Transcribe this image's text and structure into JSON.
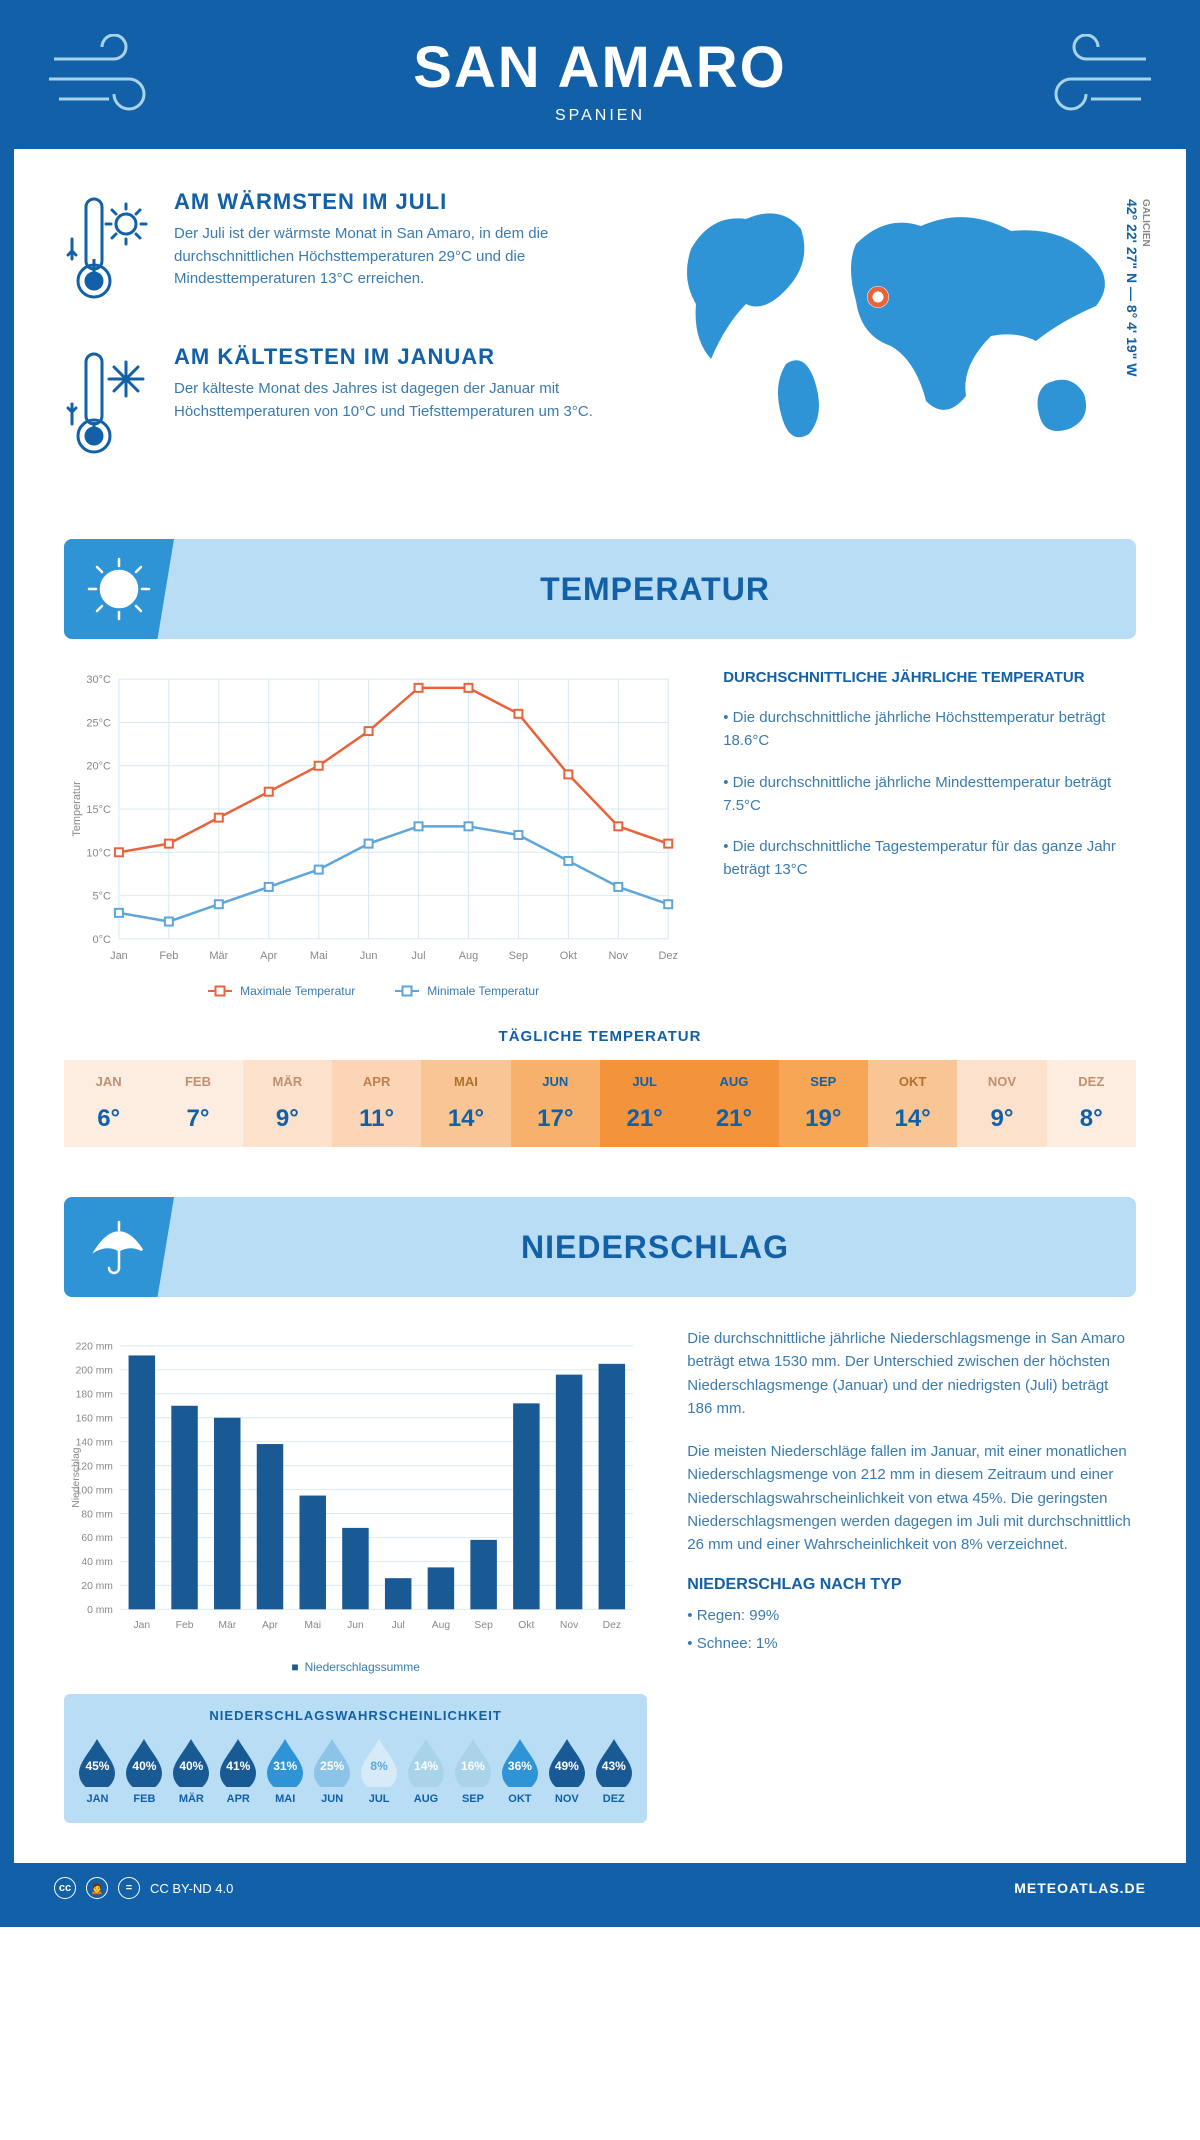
{
  "header": {
    "title": "SAN AMARO",
    "subtitle": "SPANIEN"
  },
  "coords": {
    "region": "GALICIEN",
    "text": "42° 22' 27\" N — 8° 4' 19\" W"
  },
  "facts": {
    "warmest": {
      "title": "AM WÄRMSTEN IM JULI",
      "text": "Der Juli ist der wärmste Monat in San Amaro, in dem die durchschnittlichen Höchsttemperaturen 29°C und die Mindesttemperaturen 13°C erreichen."
    },
    "coldest": {
      "title": "AM KÄLTESTEN IM JANUAR",
      "text": "Der kälteste Monat des Jahres ist dagegen der Januar mit Höchsttemperaturen von 10°C und Tiefsttemperaturen um 3°C."
    }
  },
  "temperature": {
    "section_title": "TEMPERATUR",
    "months": [
      "Jan",
      "Feb",
      "Mär",
      "Apr",
      "Mai",
      "Jun",
      "Jul",
      "Aug",
      "Sep",
      "Okt",
      "Nov",
      "Dez"
    ],
    "max_values": [
      10,
      11,
      14,
      17,
      20,
      24,
      29,
      29,
      26,
      19,
      13,
      11
    ],
    "min_values": [
      3,
      2,
      4,
      6,
      8,
      11,
      13,
      13,
      12,
      9,
      6,
      4
    ],
    "max_color": "#e9623a",
    "min_color": "#5da5db",
    "ylim": [
      0,
      30
    ],
    "ytick_step": 5,
    "y_unit": "°C",
    "ylabel": "Temperatur",
    "legend_max": "Maximale Temperatur",
    "legend_min": "Minimale Temperatur",
    "text_title": "DURCHSCHNITTLICHE JÄHRLICHE TEMPERATUR",
    "bullet1": "• Die durchschnittliche jährliche Höchsttemperatur beträgt 18.6°C",
    "bullet2": "• Die durchschnittliche jährliche Mindesttemperatur beträgt 7.5°C",
    "bullet3": "• Die durchschnittliche Tagestemperatur für das ganze Jahr beträgt 13°C",
    "daily_title": "TÄGLICHE TEMPERATUR",
    "daily_months": [
      "JAN",
      "FEB",
      "MÄR",
      "APR",
      "MAI",
      "JUN",
      "JUL",
      "AUG",
      "SEP",
      "OKT",
      "NOV",
      "DEZ"
    ],
    "daily_values": [
      "6°",
      "7°",
      "9°",
      "11°",
      "14°",
      "17°",
      "21°",
      "21°",
      "19°",
      "14°",
      "9°",
      "8°"
    ],
    "daily_colors": [
      "#fdece0",
      "#fdece0",
      "#fce1cd",
      "#fbd5b6",
      "#fac595",
      "#f8b16c",
      "#f3933b",
      "#f3933b",
      "#f7a655",
      "#fac595",
      "#fce1cd",
      "#fdece0"
    ],
    "daily_text_colors": [
      "#c09070",
      "#c09070",
      "#c09070",
      "#c08050",
      "#b07030",
      "#1160a8",
      "#1160a8",
      "#1160a8",
      "#1160a8",
      "#b07030",
      "#c09070",
      "#c09070"
    ]
  },
  "precipitation": {
    "section_title": "NIEDERSCHLAG",
    "months": [
      "Jan",
      "Feb",
      "Mär",
      "Apr",
      "Mai",
      "Jun",
      "Jul",
      "Aug",
      "Sep",
      "Okt",
      "Nov",
      "Dez"
    ],
    "values": [
      212,
      170,
      160,
      138,
      95,
      68,
      26,
      35,
      58,
      172,
      196,
      205
    ],
    "bar_color": "#1a5a94",
    "ylim": [
      0,
      220
    ],
    "ytick_step": 20,
    "y_unit": " mm",
    "ylabel": "Niederschlag",
    "legend": "Niederschlagssumme",
    "para1": "Die durchschnittliche jährliche Niederschlagsmenge in San Amaro beträgt etwa 1530 mm. Der Unterschied zwischen der höchsten Niederschlagsmenge (Januar) und der niedrigsten (Juli) beträgt 186 mm.",
    "para2": "Die meisten Niederschläge fallen im Januar, mit einer monatlichen Niederschlagsmenge von 212 mm in diesem Zeitraum und einer Niederschlagswahrscheinlichkeit von etwa 45%. Die geringsten Niederschlagsmengen werden dagegen im Juli mit durchschnittlich 26 mm und einer Wahrscheinlichkeit von 8% verzeichnet.",
    "type_title": "NIEDERSCHLAG NACH TYP",
    "type1": "• Regen: 99%",
    "type2": "• Schnee: 1%",
    "prob_title": "NIEDERSCHLAGSWAHRSCHEINLICHKEIT",
    "prob_months": [
      "JAN",
      "FEB",
      "MÄR",
      "APR",
      "MAI",
      "JUN",
      "JUL",
      "AUG",
      "SEP",
      "OKT",
      "NOV",
      "DEZ"
    ],
    "prob_values": [
      "45%",
      "40%",
      "40%",
      "41%",
      "31%",
      "25%",
      "8%",
      "14%",
      "16%",
      "36%",
      "49%",
      "43%"
    ],
    "prob_colors": [
      "#1a5a94",
      "#1a5a94",
      "#1a5a94",
      "#1a5a94",
      "#2f94d6",
      "#8cc4e8",
      "#d6eaf7",
      "#a8d3e8",
      "#a8d3e8",
      "#2f94d6",
      "#1a5a94",
      "#1a5a94"
    ],
    "prob_text_colors": [
      "#fff",
      "#fff",
      "#fff",
      "#fff",
      "#fff",
      "#fff",
      "#5da5db",
      "#fff",
      "#fff",
      "#fff",
      "#fff",
      "#fff"
    ]
  },
  "footer": {
    "license": "CC BY-ND 4.0",
    "site": "METEOATLAS.DE"
  }
}
